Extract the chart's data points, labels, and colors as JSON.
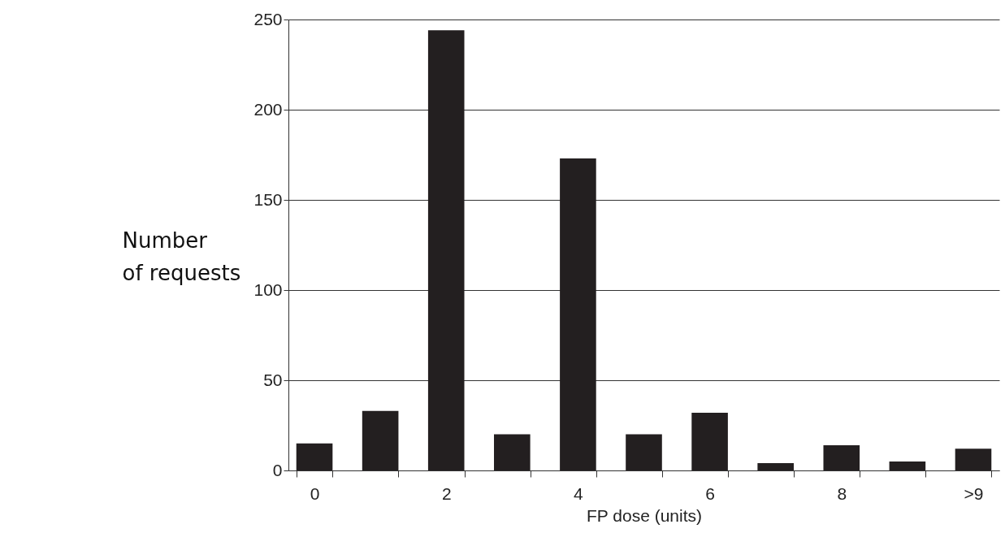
{
  "chart_data": {
    "type": "bar",
    "xlabel": "FP dose (units)",
    "ylabel": "Number\nof requests",
    "categories": [
      "0",
      null,
      "2",
      null,
      "4",
      null,
      "6",
      null,
      "8",
      null,
      ">9"
    ],
    "values": [
      15,
      33,
      244,
      20,
      173,
      20,
      32,
      4,
      14,
      5,
      12
    ],
    "color": "#231f20",
    "ylim": [
      0,
      250
    ],
    "yticks": [
      0,
      50,
      100,
      150,
      200,
      250
    ],
    "grid": "y"
  }
}
